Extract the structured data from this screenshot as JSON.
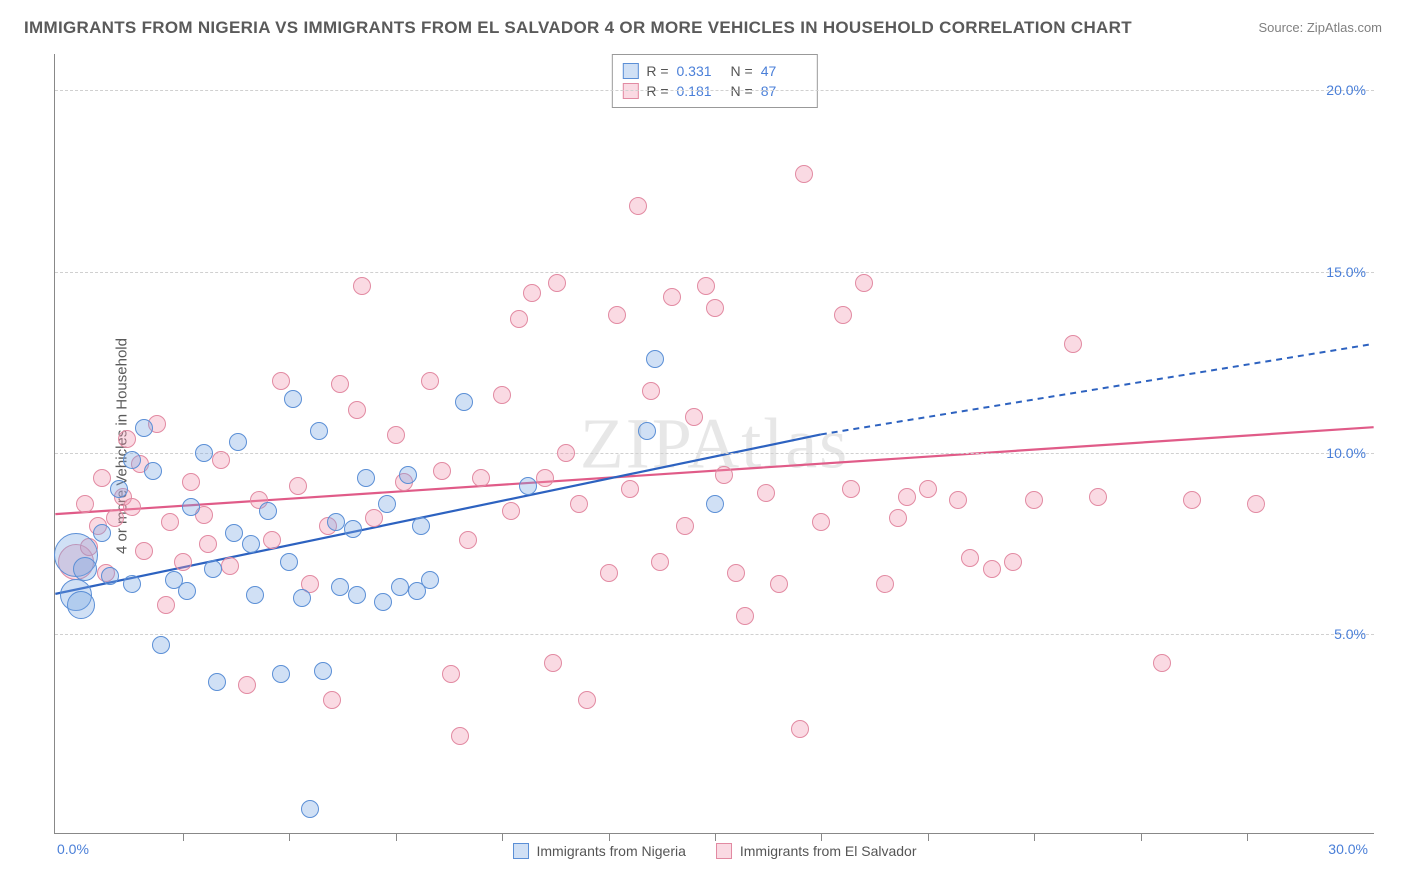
{
  "title": "IMMIGRANTS FROM NIGERIA VS IMMIGRANTS FROM EL SALVADOR 4 OR MORE VEHICLES IN HOUSEHOLD CORRELATION CHART",
  "source": "Source: ZipAtlas.com",
  "watermark": "ZIPAtlas",
  "ylabel": "4 or more Vehicles in Household",
  "chart": {
    "type": "scatter",
    "background_color": "#ffffff",
    "grid_color": "#d0d0d0",
    "axis_color": "#888888",
    "tick_label_color": "#4a7fd8",
    "title_color": "#5a5a5a",
    "title_fontsize": 17,
    "label_fontsize": 15,
    "tick_fontsize": 14,
    "xlim": [
      -0.5,
      30.5
    ],
    "ylim": [
      -0.5,
      21
    ],
    "xticks": [
      0,
      30
    ],
    "xtick_minor": [
      2.5,
      5,
      7.5,
      10,
      12.5,
      15,
      17.5,
      20,
      22.5,
      25,
      27.5
    ],
    "yticks": [
      5,
      10,
      15,
      20
    ],
    "xtick_labels": [
      "0.0%",
      "30.0%"
    ],
    "ytick_labels": [
      "5.0%",
      "10.0%",
      "15.0%",
      "20.0%"
    ],
    "marker_radius": 9,
    "marker_stroke_width": 1.2,
    "line_width_solid": 2.2,
    "line_width_dash": 2.0
  },
  "series": [
    {
      "name": "Immigrants from Nigeria",
      "fill": "rgba(120,165,225,0.35)",
      "stroke": "#5b8fd6",
      "line_color": "#2d62c0",
      "R_label": "R =",
      "R": "0.331",
      "N_label": "N =",
      "N": "47",
      "trend": {
        "x1": -0.5,
        "y1": 6.1,
        "x2": 17.5,
        "y2": 10.5,
        "dash_from_x": 17.5,
        "x3": 30.5,
        "y3": 13.0
      },
      "points": [
        {
          "x": 0.0,
          "y": 7.2,
          "r": 22
        },
        {
          "x": 0.0,
          "y": 6.1,
          "r": 16
        },
        {
          "x": 0.2,
          "y": 6.8,
          "r": 12
        },
        {
          "x": 0.1,
          "y": 5.8,
          "r": 14
        },
        {
          "x": 0.8,
          "y": 6.6
        },
        {
          "x": 0.6,
          "y": 7.8
        },
        {
          "x": 1.0,
          "y": 9.0
        },
        {
          "x": 1.3,
          "y": 6.4
        },
        {
          "x": 1.3,
          "y": 9.8
        },
        {
          "x": 1.8,
          "y": 9.5
        },
        {
          "x": 1.6,
          "y": 10.7
        },
        {
          "x": 2.0,
          "y": 4.7
        },
        {
          "x": 2.3,
          "y": 6.5
        },
        {
          "x": 2.6,
          "y": 6.2
        },
        {
          "x": 2.7,
          "y": 8.5
        },
        {
          "x": 3.0,
          "y": 10.0
        },
        {
          "x": 3.2,
          "y": 6.8
        },
        {
          "x": 3.3,
          "y": 3.7
        },
        {
          "x": 3.7,
          "y": 7.8
        },
        {
          "x": 3.8,
          "y": 10.3
        },
        {
          "x": 4.1,
          "y": 7.5
        },
        {
          "x": 4.2,
          "y": 6.1
        },
        {
          "x": 4.5,
          "y": 8.4
        },
        {
          "x": 4.8,
          "y": 3.9
        },
        {
          "x": 5.0,
          "y": 7.0
        },
        {
          "x": 5.1,
          "y": 11.5
        },
        {
          "x": 5.3,
          "y": 6.0
        },
        {
          "x": 5.5,
          "y": 0.2
        },
        {
          "x": 5.7,
          "y": 10.6
        },
        {
          "x": 5.8,
          "y": 4.0
        },
        {
          "x": 6.1,
          "y": 8.1
        },
        {
          "x": 6.2,
          "y": 6.3
        },
        {
          "x": 6.5,
          "y": 7.9
        },
        {
          "x": 6.6,
          "y": 6.1
        },
        {
          "x": 6.8,
          "y": 9.3
        },
        {
          "x": 7.2,
          "y": 5.9
        },
        {
          "x": 7.3,
          "y": 8.6
        },
        {
          "x": 7.6,
          "y": 6.3
        },
        {
          "x": 7.8,
          "y": 9.4
        },
        {
          "x": 8.0,
          "y": 6.2
        },
        {
          "x": 8.1,
          "y": 8.0
        },
        {
          "x": 8.3,
          "y": 6.5
        },
        {
          "x": 9.1,
          "y": 11.4
        },
        {
          "x": 10.6,
          "y": 9.1
        },
        {
          "x": 13.4,
          "y": 10.6
        },
        {
          "x": 13.6,
          "y": 12.6
        },
        {
          "x": 15.0,
          "y": 8.6
        }
      ]
    },
    {
      "name": "Immigrants from El Salvador",
      "fill": "rgba(240,150,175,0.35)",
      "stroke": "#e28aa2",
      "line_color": "#e05b88",
      "R_label": "R =",
      "R": "0.181",
      "N_label": "N =",
      "N": "87",
      "trend": {
        "x1": -0.5,
        "y1": 8.3,
        "x2": 30.5,
        "y2": 10.7,
        "dash_from_x": null
      },
      "points": [
        {
          "x": 0.0,
          "y": 7.0,
          "r": 18
        },
        {
          "x": 0.2,
          "y": 8.6
        },
        {
          "x": 0.3,
          "y": 7.4
        },
        {
          "x": 0.5,
          "y": 8.0
        },
        {
          "x": 0.6,
          "y": 9.3
        },
        {
          "x": 0.7,
          "y": 6.7
        },
        {
          "x": 0.9,
          "y": 8.2
        },
        {
          "x": 1.1,
          "y": 8.8
        },
        {
          "x": 1.2,
          "y": 10.4
        },
        {
          "x": 1.3,
          "y": 8.5
        },
        {
          "x": 1.5,
          "y": 9.7
        },
        {
          "x": 1.6,
          "y": 7.3
        },
        {
          "x": 1.9,
          "y": 10.8
        },
        {
          "x": 2.1,
          "y": 5.8
        },
        {
          "x": 2.2,
          "y": 8.1
        },
        {
          "x": 2.5,
          "y": 7.0
        },
        {
          "x": 2.7,
          "y": 9.2
        },
        {
          "x": 3.0,
          "y": 8.3
        },
        {
          "x": 3.1,
          "y": 7.5
        },
        {
          "x": 3.4,
          "y": 9.8
        },
        {
          "x": 3.6,
          "y": 6.9
        },
        {
          "x": 4.0,
          "y": 3.6
        },
        {
          "x": 4.3,
          "y": 8.7
        },
        {
          "x": 4.6,
          "y": 7.6
        },
        {
          "x": 4.8,
          "y": 12.0
        },
        {
          "x": 5.2,
          "y": 9.1
        },
        {
          "x": 5.5,
          "y": 6.4
        },
        {
          "x": 5.9,
          "y": 8.0
        },
        {
          "x": 6.0,
          "y": 3.2
        },
        {
          "x": 6.2,
          "y": 11.9
        },
        {
          "x": 6.6,
          "y": 11.2
        },
        {
          "x": 6.7,
          "y": 14.6
        },
        {
          "x": 7.0,
          "y": 8.2
        },
        {
          "x": 7.5,
          "y": 10.5
        },
        {
          "x": 7.7,
          "y": 9.2
        },
        {
          "x": 8.3,
          "y": 12.0
        },
        {
          "x": 8.6,
          "y": 9.5
        },
        {
          "x": 8.8,
          "y": 3.9
        },
        {
          "x": 9.0,
          "y": 2.2
        },
        {
          "x": 9.2,
          "y": 7.6
        },
        {
          "x": 9.5,
          "y": 9.3
        },
        {
          "x": 10.0,
          "y": 11.6
        },
        {
          "x": 10.2,
          "y": 8.4
        },
        {
          "x": 10.4,
          "y": 13.7
        },
        {
          "x": 10.7,
          "y": 14.4
        },
        {
          "x": 11.0,
          "y": 9.3
        },
        {
          "x": 11.2,
          "y": 4.2
        },
        {
          "x": 11.3,
          "y": 14.7
        },
        {
          "x": 11.5,
          "y": 10.0
        },
        {
          "x": 11.8,
          "y": 8.6
        },
        {
          "x": 12.0,
          "y": 3.2
        },
        {
          "x": 12.5,
          "y": 6.7
        },
        {
          "x": 12.7,
          "y": 13.8
        },
        {
          "x": 13.0,
          "y": 9.0
        },
        {
          "x": 13.2,
          "y": 16.8
        },
        {
          "x": 13.5,
          "y": 11.7
        },
        {
          "x": 13.7,
          "y": 7.0
        },
        {
          "x": 14.0,
          "y": 14.3
        },
        {
          "x": 14.3,
          "y": 8.0
        },
        {
          "x": 14.5,
          "y": 11.0
        },
        {
          "x": 14.8,
          "y": 14.6
        },
        {
          "x": 15.0,
          "y": 14.0
        },
        {
          "x": 15.2,
          "y": 9.4
        },
        {
          "x": 15.5,
          "y": 6.7
        },
        {
          "x": 15.7,
          "y": 5.5
        },
        {
          "x": 16.2,
          "y": 8.9
        },
        {
          "x": 16.5,
          "y": 6.4
        },
        {
          "x": 17.0,
          "y": 2.4
        },
        {
          "x": 17.1,
          "y": 17.7
        },
        {
          "x": 17.5,
          "y": 8.1
        },
        {
          "x": 18.0,
          "y": 13.8
        },
        {
          "x": 18.2,
          "y": 9.0
        },
        {
          "x": 18.5,
          "y": 14.7
        },
        {
          "x": 19.0,
          "y": 6.4
        },
        {
          "x": 19.3,
          "y": 8.2
        },
        {
          "x": 20.0,
          "y": 9.0
        },
        {
          "x": 20.7,
          "y": 8.7
        },
        {
          "x": 21.0,
          "y": 7.1
        },
        {
          "x": 22.0,
          "y": 7.0
        },
        {
          "x": 22.5,
          "y": 8.7
        },
        {
          "x": 23.4,
          "y": 13.0
        },
        {
          "x": 24.0,
          "y": 8.8
        },
        {
          "x": 25.5,
          "y": 4.2
        },
        {
          "x": 26.2,
          "y": 8.7
        },
        {
          "x": 27.7,
          "y": 8.6
        },
        {
          "x": 19.5,
          "y": 8.8
        },
        {
          "x": 21.5,
          "y": 6.8
        }
      ]
    }
  ],
  "bottom_legend": [
    {
      "label": "Immigrants from Nigeria"
    },
    {
      "label": "Immigrants from El Salvador"
    }
  ]
}
